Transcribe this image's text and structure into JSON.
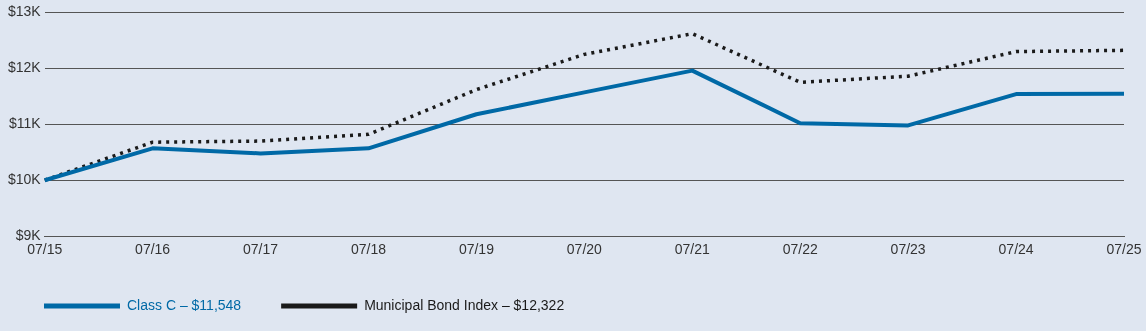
{
  "chart_data": {
    "type": "line",
    "categories": [
      "07/15",
      "07/16",
      "07/17",
      "07/18",
      "07/19",
      "07/20",
      "07/21",
      "07/22",
      "07/23",
      "07/24",
      "07/25"
    ],
    "series": [
      {
        "name": "Class C – $11,548",
        "color": "#0069a6",
        "line_style": "solid",
        "values": [
          10000,
          10570,
          10480,
          10570,
          11180,
          11570,
          11960,
          11020,
          10980,
          11540,
          11548
        ]
      },
      {
        "name": "Municipal Bond Index – $12,322",
        "color": "#1a1a1a",
        "line_style": "dotted",
        "values": [
          10000,
          10680,
          10700,
          10820,
          11620,
          12250,
          12620,
          11750,
          11860,
          12300,
          12322
        ]
      }
    ],
    "ylim": [
      9000,
      13000
    ],
    "yticks": [
      {
        "value": 9000,
        "label": "$9K"
      },
      {
        "value": 10000,
        "label": "$10K"
      },
      {
        "value": 11000,
        "label": "$11K"
      },
      {
        "value": 12000,
        "label": "$12K"
      },
      {
        "value": 13000,
        "label": "$13K"
      }
    ],
    "grid": "y",
    "legend": "bottom left",
    "marker": "none"
  }
}
